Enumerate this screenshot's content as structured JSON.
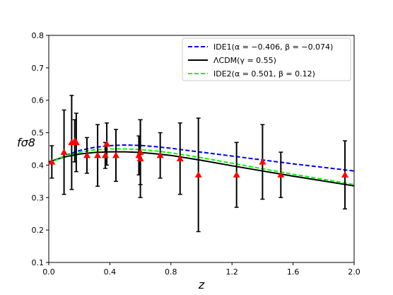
{
  "chart_data": {
    "type": "line",
    "xlabel": "z",
    "ylabel": "fσ8",
    "xlim": [
      0.0,
      2.0
    ],
    "ylim": [
      0.1,
      0.8
    ],
    "x_ticks": [
      "0.0",
      "0.4",
      "0.8",
      "1.2",
      "1.6",
      "2.0"
    ],
    "y_ticks": [
      "0.1",
      "0.2",
      "0.3",
      "0.4",
      "0.5",
      "0.6",
      "0.7",
      "0.8"
    ],
    "grid": false,
    "legend_position": "top-right",
    "series": [
      {
        "name": "IDE1(α = −0.406, β = −0.074)",
        "style": "dashed",
        "color": "#0000ff",
        "x": [
          0.0,
          0.1,
          0.2,
          0.3,
          0.4,
          0.5,
          0.6,
          0.7,
          0.8,
          1.0,
          1.2,
          1.4,
          1.6,
          1.8,
          2.0
        ],
        "y": [
          0.405,
          0.428,
          0.445,
          0.455,
          0.46,
          0.462,
          0.461,
          0.457,
          0.452,
          0.44,
          0.428,
          0.416,
          0.404,
          0.393,
          0.382
        ]
      },
      {
        "name": "ΛCDM(γ = 0.55)",
        "style": "solid",
        "color": "#000000",
        "x": [
          0.0,
          0.1,
          0.2,
          0.3,
          0.4,
          0.5,
          0.6,
          0.7,
          0.8,
          1.0,
          1.2,
          1.4,
          1.6,
          1.8,
          2.0
        ],
        "y": [
          0.41,
          0.425,
          0.434,
          0.439,
          0.441,
          0.441,
          0.439,
          0.435,
          0.43,
          0.415,
          0.398,
          0.382,
          0.366,
          0.351,
          0.336
        ]
      },
      {
        "name": "IDE2(α = 0.501, β = 0.12)",
        "style": "dashed",
        "color": "#00ff00",
        "x": [
          0.0,
          0.1,
          0.2,
          0.3,
          0.4,
          0.5,
          0.6,
          0.7,
          0.8,
          1.0,
          1.2,
          1.4,
          1.6,
          1.8,
          2.0
        ],
        "y": [
          0.405,
          0.427,
          0.44,
          0.447,
          0.45,
          0.45,
          0.448,
          0.444,
          0.438,
          0.423,
          0.406,
          0.389,
          0.372,
          0.356,
          0.34
        ]
      }
    ],
    "observations": {
      "marker": "triangle",
      "color": "#ff0000",
      "points": [
        {
          "z": 0.02,
          "y": 0.41,
          "err": 0.05
        },
        {
          "z": 0.1,
          "y": 0.44,
          "err": 0.13
        },
        {
          "z": 0.15,
          "y": 0.47,
          "err": 0.145
        },
        {
          "z": 0.17,
          "y": 0.475,
          "err": 0.065
        },
        {
          "z": 0.18,
          "y": 0.47,
          "err": 0.09
        },
        {
          "z": 0.25,
          "y": 0.43,
          "err": 0.055
        },
        {
          "z": 0.32,
          "y": 0.43,
          "err": 0.095
        },
        {
          "z": 0.37,
          "y": 0.43,
          "err": 0.04
        },
        {
          "z": 0.38,
          "y": 0.465,
          "err": 0.065
        },
        {
          "z": 0.44,
          "y": 0.43,
          "err": 0.08
        },
        {
          "z": 0.59,
          "y": 0.43,
          "err": 0.06
        },
        {
          "z": 0.6,
          "y": 0.44,
          "err": 0.1
        },
        {
          "z": 0.6,
          "y": 0.42,
          "err": 0.12
        },
        {
          "z": 0.73,
          "y": 0.43,
          "err": 0.07
        },
        {
          "z": 0.86,
          "y": 0.42,
          "err": 0.11
        },
        {
          "z": 0.98,
          "y": 0.37,
          "err": 0.175
        },
        {
          "z": 1.23,
          "y": 0.37,
          "err": 0.1
        },
        {
          "z": 1.4,
          "y": 0.41,
          "err": 0.115
        },
        {
          "z": 1.52,
          "y": 0.37,
          "err": 0.07
        },
        {
          "z": 1.94,
          "y": 0.37,
          "err": 0.105
        }
      ]
    }
  }
}
